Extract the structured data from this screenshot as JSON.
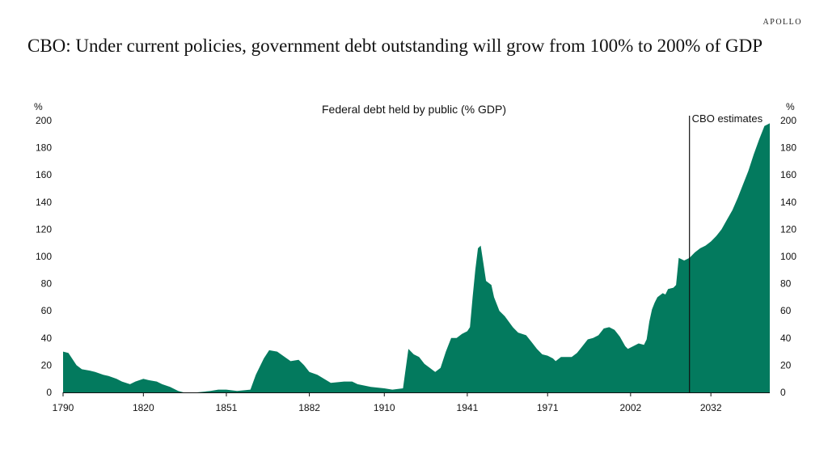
{
  "header": {
    "brand": "APOLLO",
    "headline": "CBO: Under current policies, government debt outstanding will grow from 100% to 200% of GDP"
  },
  "colors": {
    "area": "#037a5e",
    "axis": "#111111",
    "estimate_line": "#111111"
  },
  "chart_data": {
    "type": "area",
    "title": "Federal debt held by public (% GDP)",
    "ylabel_left": "%",
    "ylabel_right": "%",
    "xlim": [
      1790,
      2054
    ],
    "ylim": [
      0,
      200
    ],
    "y_ticks": [
      0,
      20,
      40,
      60,
      80,
      100,
      120,
      140,
      160,
      180,
      200
    ],
    "x_ticks": [
      1790,
      1820,
      1851,
      1882,
      1910,
      1941,
      1971,
      2002,
      2032
    ],
    "annotation": {
      "label": "CBO estimates",
      "year": 2024
    },
    "series": [
      {
        "name": "Federal debt held by public (% GDP)",
        "points": [
          [
            1790,
            30
          ],
          [
            1792,
            29
          ],
          [
            1795,
            20
          ],
          [
            1797,
            17
          ],
          [
            1800,
            16
          ],
          [
            1802,
            15
          ],
          [
            1805,
            13
          ],
          [
            1807,
            12
          ],
          [
            1810,
            10
          ],
          [
            1812,
            8
          ],
          [
            1815,
            6
          ],
          [
            1817,
            8
          ],
          [
            1820,
            10
          ],
          [
            1822,
            9
          ],
          [
            1825,
            8
          ],
          [
            1827,
            6
          ],
          [
            1830,
            4
          ],
          [
            1833,
            1
          ],
          [
            1835,
            0
          ],
          [
            1840,
            0
          ],
          [
            1845,
            1
          ],
          [
            1848,
            2
          ],
          [
            1851,
            2
          ],
          [
            1855,
            1
          ],
          [
            1860,
            2
          ],
          [
            1862,
            13
          ],
          [
            1865,
            25
          ],
          [
            1867,
            31
          ],
          [
            1870,
            30
          ],
          [
            1875,
            23
          ],
          [
            1878,
            24
          ],
          [
            1880,
            20
          ],
          [
            1882,
            15
          ],
          [
            1885,
            13
          ],
          [
            1890,
            7
          ],
          [
            1895,
            8
          ],
          [
            1898,
            8
          ],
          [
            1900,
            6
          ],
          [
            1905,
            4
          ],
          [
            1910,
            3
          ],
          [
            1913,
            2
          ],
          [
            1917,
            3
          ],
          [
            1919,
            32
          ],
          [
            1921,
            28
          ],
          [
            1923,
            26
          ],
          [
            1925,
            21
          ],
          [
            1927,
            18
          ],
          [
            1929,
            15
          ],
          [
            1931,
            18
          ],
          [
            1933,
            30
          ],
          [
            1935,
            40
          ],
          [
            1937,
            40
          ],
          [
            1939,
            43
          ],
          [
            1941,
            45
          ],
          [
            1942,
            48
          ],
          [
            1943,
            70
          ],
          [
            1944,
            90
          ],
          [
            1945,
            106
          ],
          [
            1946,
            108
          ],
          [
            1947,
            95
          ],
          [
            1948,
            82
          ],
          [
            1950,
            79
          ],
          [
            1951,
            70
          ],
          [
            1953,
            60
          ],
          [
            1955,
            56
          ],
          [
            1958,
            48
          ],
          [
            1960,
            44
          ],
          [
            1963,
            42
          ],
          [
            1965,
            37
          ],
          [
            1967,
            32
          ],
          [
            1969,
            28
          ],
          [
            1971,
            27
          ],
          [
            1973,
            25
          ],
          [
            1974,
            23
          ],
          [
            1976,
            26
          ],
          [
            1978,
            26
          ],
          [
            1980,
            26
          ],
          [
            1982,
            29
          ],
          [
            1984,
            34
          ],
          [
            1986,
            39
          ],
          [
            1988,
            40
          ],
          [
            1990,
            42
          ],
          [
            1992,
            47
          ],
          [
            1994,
            48
          ],
          [
            1996,
            46
          ],
          [
            1998,
            41
          ],
          [
            2000,
            34
          ],
          [
            2001,
            32
          ],
          [
            2003,
            34
          ],
          [
            2005,
            36
          ],
          [
            2007,
            35
          ],
          [
            2008,
            39
          ],
          [
            2009,
            52
          ],
          [
            2010,
            61
          ],
          [
            2011,
            66
          ],
          [
            2012,
            70
          ],
          [
            2014,
            73
          ],
          [
            2015,
            72
          ],
          [
            2016,
            76
          ],
          [
            2018,
            77
          ],
          [
            2019,
            79
          ],
          [
            2020,
            99
          ],
          [
            2021,
            98
          ],
          [
            2022,
            97
          ],
          [
            2024,
            99
          ],
          [
            2026,
            103
          ],
          [
            2028,
            106
          ],
          [
            2030,
            108
          ],
          [
            2032,
            111
          ],
          [
            2034,
            115
          ],
          [
            2036,
            120
          ],
          [
            2038,
            127
          ],
          [
            2040,
            134
          ],
          [
            2042,
            143
          ],
          [
            2044,
            153
          ],
          [
            2046,
            163
          ],
          [
            2048,
            175
          ],
          [
            2050,
            186
          ],
          [
            2052,
            196
          ],
          [
            2054,
            198
          ]
        ]
      }
    ]
  }
}
